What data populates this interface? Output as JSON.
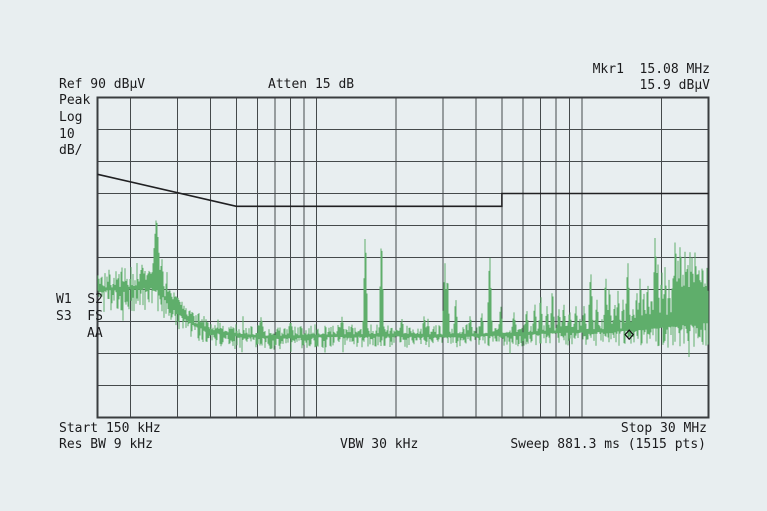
{
  "screen": {
    "bg_color": "#e8eef0",
    "text_color": "#1b1b1d"
  },
  "header": {
    "ref_level": "Ref 90 dBμV",
    "atten": "Atten 15 dB",
    "marker_readout": {
      "line1": "Mkr1  15.08 MHz",
      "line2": "15.9 dBμV"
    }
  },
  "left_annotations": {
    "detector": "Peak",
    "scale_type": "Log",
    "scale_value": "10",
    "scale_unit": "dB/",
    "trace_flags": [
      "W1  S2",
      "S3  FS",
      "AA"
    ]
  },
  "footer": {
    "start": "Start 150 kHz",
    "stop": "Stop 30 MHz",
    "res_bw": "Res BW 9 kHz",
    "vbw": "VBW 30 kHz",
    "sweep": "Sweep 881.3 ms (1515 pts)"
  },
  "chart_data": {
    "type": "line",
    "title": "EMI conducted-emissions spectrum (spectrum analyzer screen)",
    "x_axis": {
      "scale": "log",
      "start_hz": 150000,
      "stop_hz": 30000000,
      "unit": "Hz",
      "start_label": "Start 150 kHz",
      "stop_label": "Stop 30 MHz"
    },
    "y_axis": {
      "ref_dbuv": 90,
      "db_per_div": 10,
      "divisions": 10,
      "unit": "dBμV",
      "ylim": [
        -10,
        90
      ]
    },
    "grid": {
      "color": "#45494b",
      "border_color": "#3a3d3f"
    },
    "limit_line": {
      "color": "#202022",
      "points_mhz_dbuv": [
        [
          0.15,
          66
        ],
        [
          0.5,
          56
        ],
        [
          5,
          56
        ],
        [
          5,
          60
        ],
        [
          30,
          60
        ]
      ]
    },
    "trace": {
      "color": "#5fae6b",
      "seed": 7,
      "noise_floor_mhz_dbuv": [
        [
          0.15,
          30
        ],
        [
          0.2,
          30.5
        ],
        [
          0.25,
          31
        ],
        [
          0.27,
          27
        ],
        [
          0.3,
          23
        ],
        [
          0.34,
          19.5
        ],
        [
          0.4,
          17
        ],
        [
          0.5,
          15.8
        ],
        [
          0.7,
          15.0
        ],
        [
          1.0,
          15.5
        ],
        [
          2.0,
          15.8
        ],
        [
          3.0,
          15.5
        ],
        [
          4.0,
          15.8
        ],
        [
          5.0,
          16.0
        ],
        [
          6.0,
          16.2
        ],
        [
          8.0,
          16.8
        ],
        [
          10.0,
          17.0
        ],
        [
          13.0,
          17.3
        ],
        [
          16.0,
          17.6
        ],
        [
          20.0,
          18.5
        ],
        [
          24.0,
          19.2
        ],
        [
          27.0,
          19.6
        ],
        [
          30.0,
          20.0
        ]
      ],
      "noise_amp_mhz_db": [
        [
          0.15,
          5.0
        ],
        [
          0.25,
          5.0
        ],
        [
          0.3,
          4.0
        ],
        [
          0.4,
          3.2
        ],
        [
          0.6,
          2.7
        ],
        [
          1.0,
          2.5
        ],
        [
          5.0,
          2.5
        ],
        [
          8.0,
          2.8
        ],
        [
          10.0,
          3.0
        ],
        [
          15.0,
          3.3
        ],
        [
          20.0,
          4.2
        ],
        [
          25.0,
          5.0
        ],
        [
          30.0,
          5.2
        ]
      ],
      "peaks_mhz_dbuv_hw": [
        [
          0.221,
          38,
          2.5
        ],
        [
          0.235,
          36,
          3
        ],
        [
          0.25,
          53,
          4
        ],
        [
          0.262,
          40,
          2
        ],
        [
          0.28,
          30,
          3
        ],
        [
          0.295,
          28,
          3
        ],
        [
          0.315,
          24,
          3
        ],
        [
          0.62,
          21.5,
          2
        ],
        [
          0.8,
          20,
          2
        ],
        [
          1.25,
          21.5,
          1.5
        ],
        [
          1.53,
          49,
          2
        ],
        [
          1.76,
          47.5,
          2
        ],
        [
          2.1,
          21,
          1.5
        ],
        [
          2.55,
          22,
          1.5
        ],
        [
          3.05,
          39,
          2
        ],
        [
          3.12,
          36,
          1.5
        ],
        [
          3.35,
          28,
          1.5
        ],
        [
          3.8,
          22,
          1.5
        ],
        [
          4.2,
          23,
          1.5
        ],
        [
          4.5,
          42,
          2
        ],
        [
          4.95,
          25.5,
          1.5
        ],
        [
          5.55,
          23,
          1.5
        ],
        [
          6.2,
          24,
          1.5
        ],
        [
          6.65,
          26,
          1.5
        ],
        [
          7.0,
          29,
          1.5
        ],
        [
          7.4,
          25,
          1.5
        ],
        [
          7.75,
          31,
          1.5
        ],
        [
          8.2,
          24,
          1.5
        ],
        [
          8.55,
          26,
          1.5
        ],
        [
          9.0,
          23.5,
          1.5
        ],
        [
          9.5,
          25,
          1.5
        ],
        [
          10.2,
          25,
          1.5
        ],
        [
          10.8,
          36.5,
          2
        ],
        [
          11.4,
          27,
          1.5
        ],
        [
          12.3,
          35.5,
          1.5
        ],
        [
          12.7,
          32,
          1.5
        ],
        [
          13.3,
          26,
          1.5
        ],
        [
          13.7,
          30,
          1.5
        ],
        [
          14.3,
          27,
          1.5
        ],
        [
          14.9,
          39.5,
          2
        ],
        [
          15.6,
          24,
          1.5
        ],
        [
          16.1,
          30,
          1.5
        ],
        [
          16.6,
          35,
          1.5
        ],
        [
          17.1,
          30,
          1.5
        ],
        [
          17.7,
          33,
          1.5
        ],
        [
          18.3,
          28,
          1.5
        ],
        [
          18.9,
          48,
          2
        ],
        [
          19.3,
          41,
          1.5
        ],
        [
          20.0,
          37,
          1.5
        ],
        [
          20.6,
          38,
          1.5
        ],
        [
          21.3,
          33,
          1.5
        ],
        [
          22.0,
          35,
          1.5
        ],
        [
          22.5,
          47.5,
          2
        ],
        [
          23.0,
          40,
          1.5
        ],
        [
          23.5,
          46,
          2
        ],
        [
          24.0,
          36,
          1.5
        ],
        [
          24.5,
          43,
          1.5
        ],
        [
          24.8,
          40,
          1.5
        ],
        [
          25.1,
          38,
          1.5
        ],
        [
          25.6,
          43.5,
          1.5
        ],
        [
          26.0,
          40,
          1.5
        ],
        [
          26.3,
          37,
          1.5
        ],
        [
          26.7,
          42,
          1.5
        ],
        [
          27.0,
          40,
          1.5
        ],
        [
          27.4,
          35,
          1.5
        ],
        [
          27.7,
          38,
          1.5
        ],
        [
          28.0,
          33,
          1.5
        ],
        [
          28.3,
          38,
          1.5
        ],
        [
          28.6,
          36,
          1.5
        ],
        [
          29.0,
          34,
          1.5
        ],
        [
          29.3,
          32,
          1.5
        ],
        [
          29.6,
          37,
          1.5
        ]
      ]
    },
    "marker": {
      "label": "Mkr1",
      "freq_mhz": 15.08,
      "level_dbuv": 15.9,
      "color": "#111111"
    }
  }
}
